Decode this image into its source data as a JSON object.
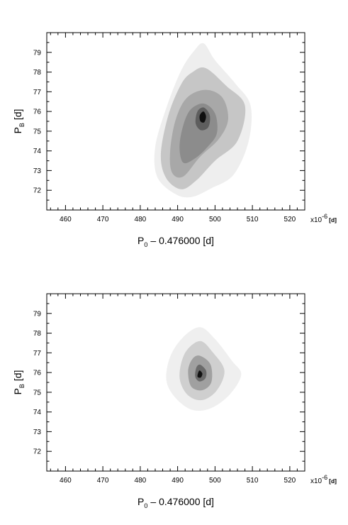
{
  "chart_data": [
    {
      "type": "contour",
      "title": "",
      "xlabel": {
        "main": "P",
        "sub": "0",
        "rest": "– 0.476000 [d]"
      },
      "ylabel": {
        "main": "P",
        "sub": "B",
        "rest": " [d]"
      },
      "x_unit_note": {
        "prefix": "x10",
        "exp": "-6",
        "unit": "[d]"
      },
      "xlim": [
        455,
        524
      ],
      "ylim": [
        71,
        80
      ],
      "x_ticks": [
        460,
        470,
        480,
        490,
        500,
        510,
        520
      ],
      "y_ticks": [
        72,
        73,
        74,
        75,
        76,
        77,
        78,
        79
      ],
      "grid": false,
      "peak": {
        "x": 496.5,
        "y": 75.75
      },
      "levels": [
        {
          "level": 1,
          "color": "#eeeeee",
          "polygon": [
            [
              497,
              79.45
            ],
            [
              500,
              78.6
            ],
            [
              505.5,
              77.4
            ],
            [
              509.5,
              76.3
            ],
            [
              509,
              74.5
            ],
            [
              505,
              72.8
            ],
            [
              499,
              72.1
            ],
            [
              493.5,
              71.65
            ],
            [
              489,
              71.85
            ],
            [
              484.5,
              72.7
            ],
            [
              484,
              74.2
            ],
            [
              487,
              76.2
            ],
            [
              491,
              78.1
            ],
            [
              494.5,
              79.1
            ]
          ]
        },
        {
          "level": 2,
          "color": "#c6c6c6",
          "polygon": [
            [
              497.5,
              78.2
            ],
            [
              503,
              77.3
            ],
            [
              508,
              76.3
            ],
            [
              506,
              74.5
            ],
            [
              500,
              73.5
            ],
            [
              495,
              72.5
            ],
            [
              491,
              72.05
            ],
            [
              487,
              72.6
            ],
            [
              485.5,
              73.8
            ],
            [
              487.5,
              75.8
            ],
            [
              491,
              77.4
            ],
            [
              494,
              78
            ]
          ]
        },
        {
          "level": 3,
          "color": "#a8a8a8",
          "polygon": [
            [
              497.5,
              77.1
            ],
            [
              502,
              76.7
            ],
            [
              503.5,
              75.6
            ],
            [
              501,
              74.6
            ],
            [
              496,
              73.7
            ],
            [
              491.5,
              72.7
            ],
            [
              488.5,
              72.9
            ],
            [
              488,
              74
            ],
            [
              489.5,
              75.6
            ],
            [
              492.5,
              76.7
            ]
          ]
        },
        {
          "level": 4,
          "color": "#8c8c8c",
          "polygon": [
            [
              497,
              76.4
            ],
            [
              500,
              75.9
            ],
            [
              500.5,
              74.9
            ],
            [
              498,
              74.2
            ],
            [
              494.5,
              73.6
            ],
            [
              491.5,
              73.4
            ],
            [
              490.5,
              74.2
            ],
            [
              491.5,
              75.3
            ],
            [
              493.5,
              76.1
            ]
          ]
        },
        {
          "level": 5,
          "color": "#5e5e5e",
          "polygon": [
            [
              497,
              76.2
            ],
            [
              498.6,
              75.8
            ],
            [
              498.2,
              75.2
            ],
            [
              496.2,
              75.05
            ],
            [
              494.8,
              75.4
            ],
            [
              495.3,
              76
            ]
          ]
        },
        {
          "level": 6,
          "color": "#101010",
          "polygon": [
            [
              496.9,
              76
            ],
            [
              497.6,
              75.75
            ],
            [
              497.1,
              75.45
            ],
            [
              496.1,
              75.5
            ],
            [
              495.9,
              75.8
            ]
          ]
        }
      ]
    },
    {
      "type": "contour",
      "title": "",
      "xlabel": {
        "main": "P",
        "sub": "0",
        "rest": "– 0.476000 [d]"
      },
      "ylabel": {
        "main": "P",
        "sub": "B",
        "rest": " [d]"
      },
      "x_unit_note": {
        "prefix": "x10",
        "exp": "-6",
        "unit": "[d]"
      },
      "xlim": [
        455,
        524
      ],
      "ylim": [
        71,
        80
      ],
      "x_ticks": [
        460,
        470,
        480,
        490,
        500,
        510,
        520
      ],
      "y_ticks": [
        72,
        73,
        74,
        75,
        76,
        77,
        78,
        79
      ],
      "grid": false,
      "peak": {
        "x": 495.5,
        "y": 75.95
      },
      "levels": [
        {
          "level": 1,
          "color": "#efefef",
          "polygon": [
            [
              496,
              78.3
            ],
            [
              500,
              77.7
            ],
            [
              504.5,
              76.6
            ],
            [
              507,
              75.9
            ],
            [
              504,
              74.9
            ],
            [
              499,
              74.2
            ],
            [
              494,
              74.1
            ],
            [
              489.5,
              74.7
            ],
            [
              487,
              75.6
            ],
            [
              488,
              76.8
            ],
            [
              491.5,
              77.8
            ]
          ]
        },
        {
          "level": 2,
          "color": "#cfcfcf",
          "polygon": [
            [
              496,
              77.6
            ],
            [
              499.5,
              77
            ],
            [
              502.5,
              76.1
            ],
            [
              500.5,
              75.1
            ],
            [
              496.5,
              74.6
            ],
            [
              492.5,
              74.9
            ],
            [
              490.5,
              75.8
            ],
            [
              492,
              77
            ]
          ]
        },
        {
          "level": 3,
          "color": "#a0a0a0",
          "polygon": [
            [
              496,
              76.85
            ],
            [
              498.8,
              76.4
            ],
            [
              499,
              75.5
            ],
            [
              496.5,
              75.1
            ],
            [
              493.6,
              75.3
            ],
            [
              492.8,
              76.1
            ],
            [
              494,
              76.7
            ]
          ]
        },
        {
          "level": 4,
          "color": "#6a6a6a",
          "polygon": [
            [
              496,
              76.4
            ],
            [
              497.6,
              76.1
            ],
            [
              497.4,
              75.7
            ],
            [
              495.8,
              75.55
            ],
            [
              494.7,
              75.8
            ],
            [
              495,
              76.25
            ]
          ]
        },
        {
          "level": 5,
          "color": "#111111",
          "polygon": [
            [
              495.8,
              76.1
            ],
            [
              496.6,
              75.95
            ],
            [
              496.2,
              75.75
            ],
            [
              495.3,
              75.8
            ]
          ]
        }
      ]
    }
  ]
}
